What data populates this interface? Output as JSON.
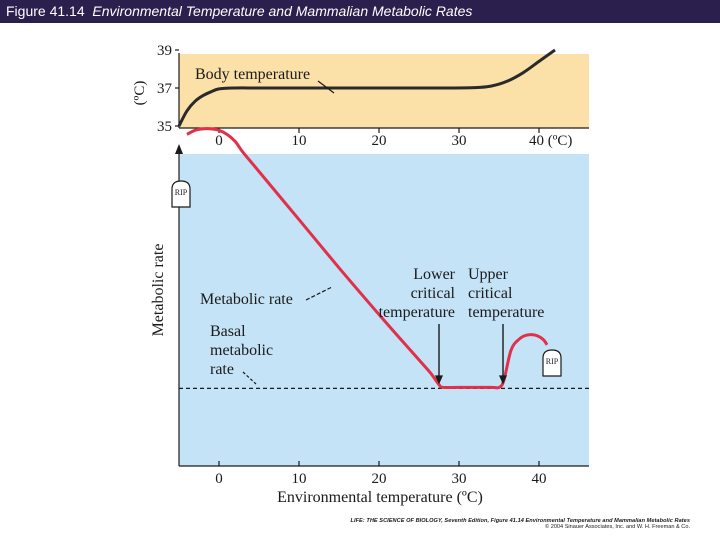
{
  "header": {
    "figure_label": "Figure 41.14",
    "caption": "Environmental Temperature and Mammalian Metabolic Rates"
  },
  "chart_data": [
    {
      "type": "line",
      "panel": "top",
      "ylabel": "(ºC)",
      "yticks": [
        35,
        37,
        39
      ],
      "ylim": [
        35,
        39
      ],
      "xlim": [
        -5,
        46
      ],
      "xticks": [
        0,
        10,
        20,
        30
      ],
      "xtick_last_label": "40 (ºC)",
      "series": [
        {
          "name": "Body temperature",
          "x": [
            -5,
            -4,
            -3,
            -2,
            -1,
            0,
            2,
            5,
            10,
            20,
            28,
            32,
            34,
            36,
            38,
            40,
            42
          ],
          "y": [
            35.0,
            35.8,
            36.3,
            36.6,
            36.8,
            36.95,
            37.0,
            37.0,
            37.0,
            37.0,
            37.0,
            37.02,
            37.1,
            37.35,
            37.8,
            38.4,
            39.0
          ]
        }
      ]
    },
    {
      "type": "line",
      "panel": "bottom",
      "xlabel": "Environmental temperature (ºC)",
      "ylabel": "Metabolic rate",
      "xlim": [
        -5,
        46
      ],
      "xticks": [
        0,
        10,
        20,
        30,
        40
      ],
      "ylim": [
        0,
        1
      ],
      "grid": false,
      "series": [
        {
          "name": "Metabolic rate",
          "x": [
            -4,
            -3,
            -2,
            -1,
            0,
            1,
            2,
            3,
            5,
            10,
            15,
            20,
            25,
            26.5,
            27.5,
            28,
            30,
            34,
            35,
            35.6,
            36.5,
            37.5,
            38.5,
            39.5,
            40.5,
            41
          ],
          "y": [
            0.955,
            0.97,
            0.975,
            0.975,
            0.97,
            0.955,
            0.93,
            0.89,
            0.82,
            0.645,
            0.47,
            0.3,
            0.135,
            0.085,
            0.045,
            0.035,
            0.035,
            0.035,
            0.035,
            0.06,
            0.17,
            0.21,
            0.225,
            0.225,
            0.21,
            0.19
          ]
        }
      ],
      "baseline": {
        "name": "Basal metabolic rate",
        "y": 0.035
      },
      "annotations": {
        "body_temperature": "Body temperature",
        "metabolic_rate": "Metabolic rate",
        "basal_1": "Basal",
        "basal_2": "metabolic",
        "basal_3": "rate",
        "lower_1": "Lower",
        "lower_2": "critical",
        "lower_3": "temperature",
        "upper_1": "Upper",
        "upper_2": "critical",
        "upper_3": "temperature",
        "tombstone": "RIP"
      },
      "critical_temperatures": {
        "lower": 27.5,
        "upper": 35.5
      }
    }
  ],
  "colors": {
    "top_panel_bg": "#fbe0a8",
    "bottom_panel_bg": "#c4e3f7",
    "body_temp_line": "#2a2a2a",
    "metabolic_line": "#e0304a",
    "header_bg": "#2b1f4d"
  },
  "footer": {
    "line1": "LIFE: THE SCIENCE OF BIOLOGY, Seventh Edition, Figure 41.14 Environmental Temperature and Mammalian Metabolic Rates",
    "line2": "© 2004 Sinauer Associates, Inc. and W. H. Freeman & Co."
  }
}
